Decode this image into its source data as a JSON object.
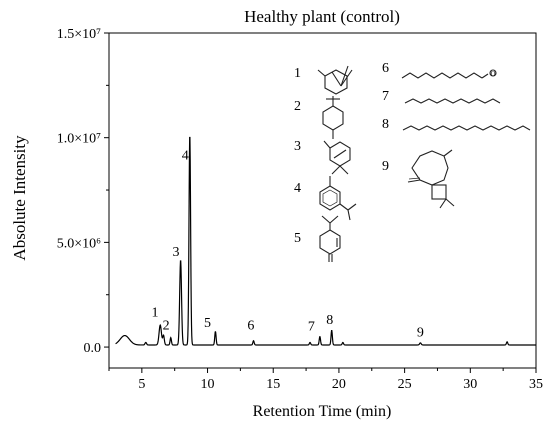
{
  "chart_data": {
    "type": "line",
    "title": "Healthy plant (control)",
    "xlabel": "Retention Time (min)",
    "ylabel": "Absolute Intensity",
    "xlim": [
      2.5,
      35
    ],
    "ylim": [
      -1000000,
      15000000
    ],
    "x_ticks": [
      5,
      10,
      15,
      20,
      25,
      30,
      35
    ],
    "y_ticks": [
      {
        "value": 0,
        "label": "0.0"
      },
      {
        "value": 5000000,
        "label": "5.0×10⁶"
      },
      {
        "value": 10000000,
        "label": "1.0×10⁷"
      },
      {
        "value": 15000000,
        "label": "1.5×10⁷"
      }
    ],
    "line_color": "#000000",
    "baseline": 100000,
    "peaks": [
      {
        "x": 3.7,
        "y": 450000,
        "w": 0.35
      },
      {
        "x": 5.3,
        "y": 120000,
        "w": 0.06
      },
      {
        "x": 6.4,
        "y": 950000,
        "w": 0.09
      },
      {
        "x": 6.65,
        "y": 450000,
        "w": 0.06
      },
      {
        "x": 7.2,
        "y": 350000,
        "w": 0.05
      },
      {
        "x": 7.95,
        "y": 4050000,
        "w": 0.07
      },
      {
        "x": 8.65,
        "y": 10050000,
        "w": 0.06
      },
      {
        "x": 10.6,
        "y": 650000,
        "w": 0.05
      },
      {
        "x": 13.5,
        "y": 200000,
        "w": 0.05
      },
      {
        "x": 17.8,
        "y": 120000,
        "w": 0.05
      },
      {
        "x": 18.55,
        "y": 400000,
        "w": 0.05
      },
      {
        "x": 19.45,
        "y": 700000,
        "w": 0.05
      },
      {
        "x": 20.3,
        "y": 120000,
        "w": 0.05
      },
      {
        "x": 26.2,
        "y": 100000,
        "w": 0.06
      },
      {
        "x": 32.8,
        "y": 150000,
        "w": 0.05
      }
    ],
    "peak_labels": [
      {
        "text": "1",
        "x": 6.0,
        "y": 1450000
      },
      {
        "text": "2",
        "x": 6.85,
        "y": 850000
      },
      {
        "text": "3",
        "x": 7.6,
        "y": 4350000
      },
      {
        "text": "4",
        "x": 8.3,
        "y": 8950000
      },
      {
        "text": "5",
        "x": 10.0,
        "y": 950000
      },
      {
        "text": "6",
        "x": 13.3,
        "y": 850000
      },
      {
        "text": "7",
        "x": 17.9,
        "y": 800000
      },
      {
        "text": "8",
        "x": 19.3,
        "y": 1100000
      },
      {
        "text": "9",
        "x": 26.2,
        "y": 500000
      }
    ]
  },
  "structure_labels": [
    "1",
    "2",
    "3",
    "4",
    "5",
    "6",
    "7",
    "8",
    "9"
  ],
  "atom_label": "O"
}
